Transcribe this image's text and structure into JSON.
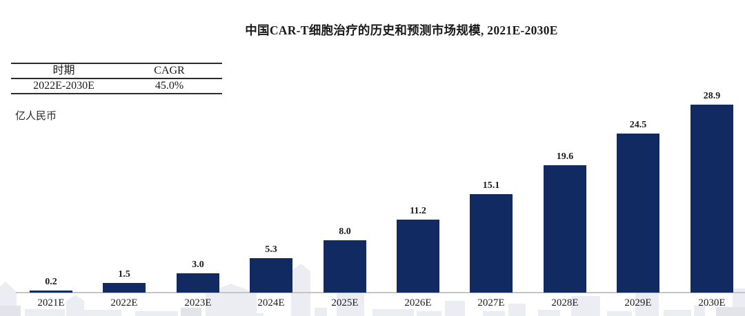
{
  "title": "中国CAR-T细胞治疗的历史和预测市场规模, 2021E-2030E",
  "cagr_table": {
    "headers": [
      "时期",
      "CAGR"
    ],
    "rows": [
      [
        "2022E-2030E",
        "45.0%"
      ]
    ]
  },
  "unit_label": "亿人民币",
  "chart_data": {
    "type": "bar",
    "title": "中国CAR-T细胞治疗的历史和预测市场规模, 2021E-2030E",
    "ylabel": "亿人民币",
    "categories": [
      "2021E",
      "2022E",
      "2023E",
      "2024E",
      "2025E",
      "2026E",
      "2027E",
      "2028E",
      "2029E",
      "2030E"
    ],
    "values": [
      0.2,
      1.5,
      3.0,
      5.3,
      8.0,
      11.2,
      15.1,
      19.6,
      24.5,
      28.9
    ],
    "value_labels": [
      "0.2",
      "1.5",
      "3.0",
      "5.3",
      "8.0",
      "11.2",
      "15.1",
      "19.6",
      "24.5",
      "28.9"
    ],
    "ylim": [
      0,
      30
    ],
    "grid": false,
    "legend_position": "none",
    "cagr_annotation": {
      "period": "2022E-2030E",
      "cagr": "45.0%"
    }
  },
  "colors": {
    "bar": "#112a62",
    "axis_line": "#c3c3c8",
    "watermark": "#ecedf2",
    "watermark_dark": "#e3e4ea",
    "text": "#1a1a1a"
  }
}
